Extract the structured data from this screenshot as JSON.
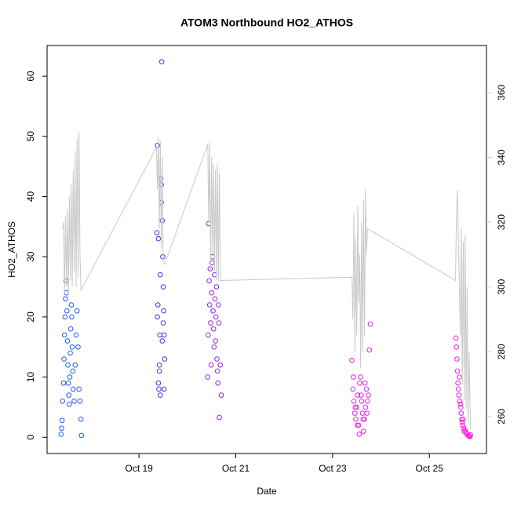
{
  "chart_data": {
    "type": "scatter",
    "title": "ATOM3 Northbound HO2_ATHOS",
    "x_label": "Date",
    "y_label": "HO2_ATHOS",
    "xlim": [
      17.1,
      26.18
    ],
    "ylim": [
      -2.7,
      65.1
    ],
    "y2lim": [
      248.6,
      374.5
    ],
    "xticks": [
      {
        "value": 19,
        "label": "Oct 19"
      },
      {
        "value": 21,
        "label": "Oct 21"
      },
      {
        "value": 23,
        "label": "Oct 23"
      },
      {
        "value": 25,
        "label": "Oct 25"
      }
    ],
    "yticks": [
      0,
      10,
      20,
      30,
      40,
      50,
      60
    ],
    "y2ticks": [
      260,
      280,
      300,
      320,
      340,
      360
    ],
    "y2_color": "#c8c8c8",
    "series": [
      {
        "color": "#1a5cf0",
        "x": [
          17.39,
          17.4,
          17.41,
          17.42,
          17.44,
          17.45,
          17.46,
          17.47,
          17.48,
          17.49,
          17.5,
          17.51,
          17.52,
          17.53,
          17.54,
          17.55,
          17.56,
          17.57,
          17.58,
          17.59,
          17.6,
          17.61,
          17.62,
          17.63,
          17.64,
          17.66,
          17.68,
          17.7,
          17.72,
          17.74,
          17.76,
          17.78,
          17.8,
          17.81
        ],
        "values": [
          0.5,
          1.5,
          2.8,
          6,
          9,
          13,
          17,
          20,
          23,
          26,
          24,
          21,
          16,
          12,
          9,
          7,
          5.5,
          10,
          14,
          18,
          22,
          20,
          15,
          11,
          8,
          6,
          12,
          17,
          21,
          15,
          8,
          6,
          3,
          0.3
        ]
      },
      {
        "color": "#4a2ef0",
        "x": [
          19.37,
          19.38,
          19.39,
          19.4,
          19.41,
          19.42,
          19.43,
          19.44,
          19.45,
          19.46,
          19.47,
          19.48,
          19.49,
          19.5,
          19.51,
          19.52,
          19.53,
          19.38,
          19.4,
          19.42,
          19.44,
          19.46,
          19.48,
          19.5,
          19.52
        ],
        "values": [
          34,
          48.5,
          22,
          9,
          8,
          11,
          17,
          27,
          43,
          39,
          62.4,
          36,
          30,
          25,
          21,
          17,
          13,
          20,
          33,
          12,
          7,
          42,
          16,
          19,
          8
        ]
      },
      {
        "color": "#9a20f0",
        "x": [
          20.42,
          20.43,
          20.44,
          20.45,
          20.46,
          20.47,
          20.48,
          20.49,
          20.5,
          20.51,
          20.52,
          20.53,
          20.54,
          20.55,
          20.56,
          20.57,
          20.58,
          20.59,
          20.6,
          20.61,
          20.62,
          20.63,
          20.64,
          20.65,
          20.66,
          20.68,
          20.7
        ],
        "values": [
          10,
          17,
          35.5,
          26,
          22,
          28,
          19,
          12,
          24,
          29,
          30,
          21,
          18,
          15,
          27,
          23,
          16,
          20,
          25,
          13,
          11,
          9,
          22,
          19,
          3.3,
          12,
          7
        ]
      },
      {
        "color": "#e81ee8",
        "x": [
          23.4,
          23.42,
          23.44,
          23.46,
          23.48,
          23.5,
          23.52,
          23.54,
          23.56,
          23.58,
          23.6,
          23.62,
          23.64,
          23.66,
          23.68,
          23.7,
          23.72,
          23.74,
          23.76,
          23.78,
          23.43,
          23.47,
          23.51,
          23.55,
          23.59,
          23.63,
          23.67,
          23.71
        ],
        "values": [
          12.8,
          8,
          6,
          4,
          3,
          5,
          7,
          2,
          9,
          10,
          6,
          4,
          1,
          3,
          5,
          8,
          6,
          7,
          14.5,
          18.8,
          10,
          5,
          2,
          0.5,
          7,
          3,
          9,
          4
        ]
      },
      {
        "color": "#ff18e0",
        "x": [
          25.55,
          25.56,
          25.57,
          25.58,
          25.59,
          25.6,
          25.61,
          25.62,
          25.63,
          25.64,
          25.65,
          25.66,
          25.67,
          25.68,
          25.69,
          25.7,
          25.71,
          25.72,
          25.74,
          25.76,
          25.78,
          25.8,
          25.82,
          25.84,
          25.85
        ],
        "values": [
          16.5,
          15,
          13,
          11,
          9,
          8,
          7,
          10,
          6,
          5.5,
          5,
          4,
          3,
          2.5,
          2,
          3,
          1.5,
          1,
          1.2,
          0.8,
          0.5,
          0.3,
          0.2,
          0.1,
          0.4
        ]
      },
      {
        "type": "line",
        "axis": "y2",
        "color": "#c8c8c8",
        "x": [
          17.42,
          17.44,
          17.46,
          17.48,
          17.5,
          17.52,
          17.54,
          17.56,
          17.58,
          17.6,
          17.62,
          17.64,
          17.66,
          17.68,
          17.7,
          17.72,
          17.74,
          17.76,
          17.78,
          17.8,
          19.36,
          19.38,
          19.4,
          19.42,
          19.44,
          19.46,
          19.48,
          19.5,
          19.53,
          20.42,
          20.44,
          20.46,
          20.48,
          20.5,
          20.52,
          20.54,
          20.56,
          20.58,
          20.6,
          20.62,
          20.64,
          20.66,
          20.68,
          23.4,
          23.42,
          23.44,
          23.46,
          23.48,
          23.5,
          23.52,
          23.54,
          23.56,
          23.58,
          23.6,
          23.62,
          23.64,
          23.66,
          23.68,
          23.7,
          23.72,
          25.54,
          25.56,
          25.58,
          25.6,
          25.62,
          25.64,
          25.66,
          25.68,
          25.7,
          25.72,
          25.74,
          25.76,
          25.78,
          25.8,
          25.82,
          25.85
        ],
        "values": [
          318,
          320,
          298,
          322,
          300,
          324,
          297,
          328,
          302,
          332,
          300,
          336,
          305,
          342,
          300,
          346,
          303,
          348,
          310,
          299,
          343,
          330,
          346,
          318,
          345,
          312,
          340,
          308,
          307,
          344,
          320,
          345,
          305,
          340,
          310,
          338,
          305,
          336,
          302,
          338,
          302,
          335,
          302,
          303,
          290,
          323,
          280,
          315,
          285,
          325,
          295,
          310,
          275,
          320,
          280,
          327,
          285,
          330,
          310,
          318,
          302,
          322,
          330,
          315,
          300,
          285,
          318,
          270,
          314,
          265,
          316,
          262,
          300,
          258,
          280,
          256
        ]
      }
    ]
  }
}
